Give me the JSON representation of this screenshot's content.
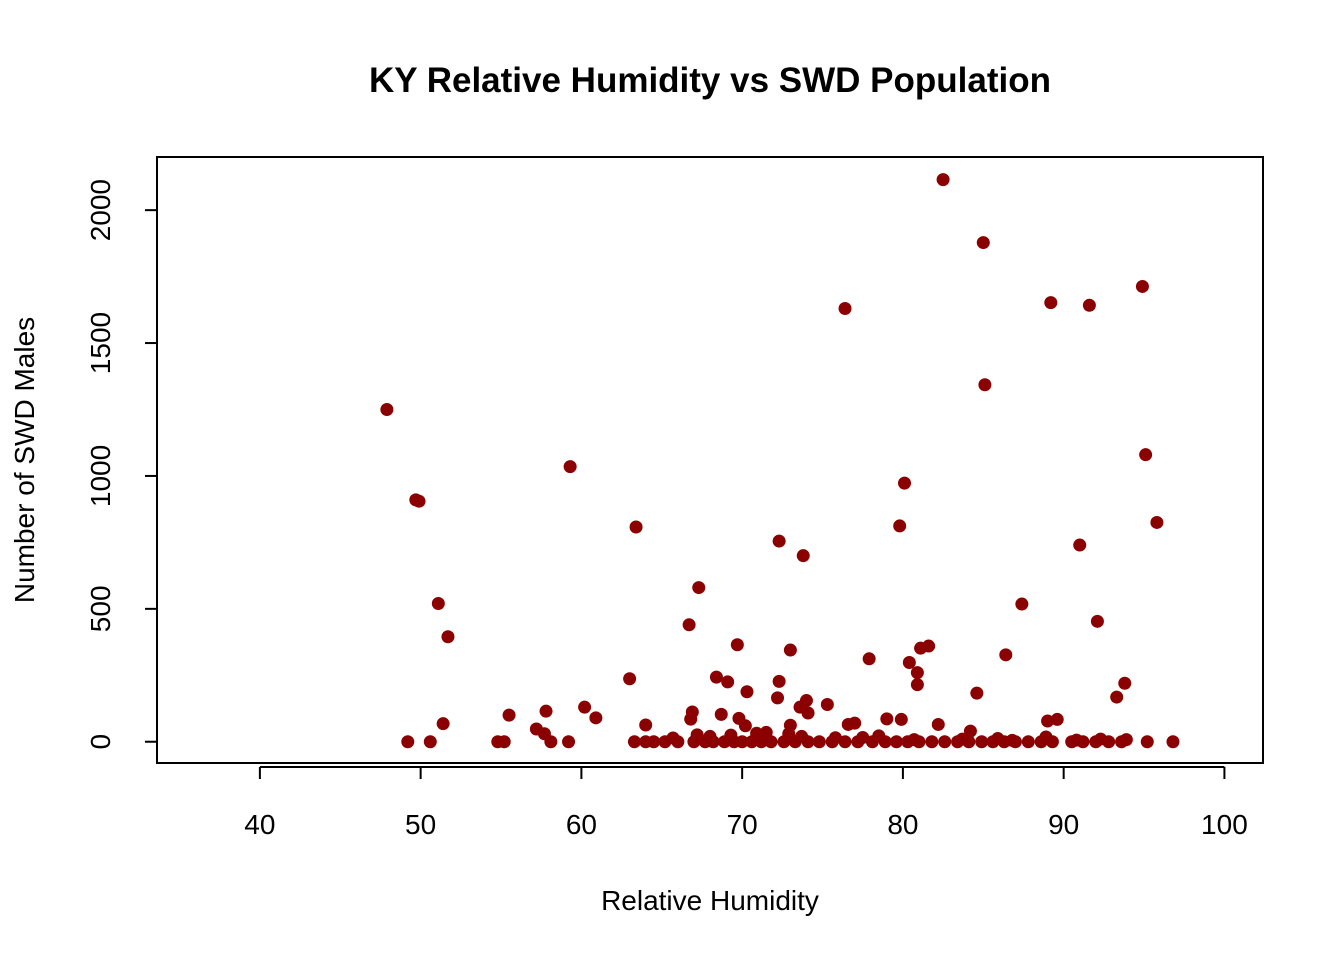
{
  "chart_data": {
    "type": "scatter",
    "title": "KY Relative Humidity vs SWD Population",
    "xlabel": "Relative Humidity",
    "ylabel": "Number of SWD Males",
    "xlim": [
      33.6,
      102.4
    ],
    "ylim": [
      -80,
      2200
    ],
    "x_ticks": [
      40,
      50,
      60,
      70,
      80,
      90,
      100
    ],
    "y_ticks": [
      0,
      500,
      1000,
      1500,
      2000
    ],
    "x_tick_labels": [
      "40",
      "50",
      "60",
      "70",
      "80",
      "90",
      "100"
    ],
    "y_tick_labels": [
      "0",
      "500",
      "1000",
      "1500",
      "2000"
    ],
    "grid": false,
    "legend": "none",
    "point_color": "#8B0000",
    "series": [
      {
        "x": [
          47.9,
          49.7,
          49.9,
          51.1,
          51.7,
          59.3,
          63.4,
          76.4,
          82.5,
          85.0,
          85.1,
          89.2,
          91.6,
          94.9,
          95.1,
          95.8,
          91.0,
          92.1,
          87.4,
          86.4,
          80.1,
          79.8,
          72.3,
          73.8,
          67.3,
          66.7,
          69.7,
          73.0,
          77.9,
          81.6,
          81.1,
          80.4,
          80.9,
          80.9,
          84.6,
          93.3,
          93.8,
          63.0,
          68.4,
          69.1,
          72.3,
          72.2,
          70.3,
          74.0,
          73.6,
          74.1,
          75.3,
          68.7,
          66.9,
          66.8,
          60.2,
          60.9,
          57.8,
          55.5,
          51.4,
          57.2,
          57.7,
          69.8,
          70.2,
          73.0,
          76.6,
          77.0,
          79.0,
          79.9,
          82.2,
          84.2,
          89.0,
          89.6,
          64.0,
          49.2,
          50.6,
          54.8,
          55.2,
          58.1,
          59.2,
          63.3,
          64.0,
          64.5,
          65.2,
          66.0,
          67.0,
          67.7,
          68.2,
          68.9,
          69.5,
          70.0,
          70.6,
          71.2,
          71.8,
          72.6,
          73.3,
          74.1,
          74.8,
          75.6,
          76.4,
          77.2,
          78.1,
          78.9,
          79.6,
          80.3,
          81.0,
          81.8,
          82.6,
          83.4,
          84.1,
          84.9,
          85.6,
          86.3,
          87.0,
          87.8,
          88.6,
          89.3,
          90.5,
          91.2,
          92.0,
          92.8,
          93.6,
          95.2,
          96.8,
          71.5,
          69.3,
          68.0,
          72.9,
          75.8,
          78.5,
          85.9,
          88.9,
          92.3,
          65.7,
          67.2,
          70.9,
          73.7,
          77.5,
          80.7,
          83.7,
          86.8,
          90.8,
          93.9
        ],
        "y": [
          1250,
          910,
          905,
          520,
          395,
          1035,
          808,
          1630,
          2115,
          1878,
          1343,
          1652,
          1642,
          1713,
          1080,
          825,
          740,
          453,
          518,
          327,
          973,
          812,
          755,
          700,
          580,
          440,
          365,
          345,
          312,
          360,
          352,
          298,
          260,
          215,
          183,
          168,
          220,
          237,
          243,
          225,
          227,
          165,
          188,
          155,
          130,
          108,
          140,
          103,
          112,
          85,
          130,
          90,
          115,
          100,
          68,
          48,
          30,
          88,
          60,
          62,
          65,
          70,
          86,
          84,
          65,
          40,
          78,
          84,
          63,
          0,
          0,
          0,
          0,
          0,
          0,
          0,
          0,
          0,
          0,
          0,
          0,
          0,
          0,
          0,
          0,
          0,
          0,
          0,
          0,
          0,
          0,
          0,
          0,
          0,
          0,
          0,
          0,
          0,
          0,
          0,
          0,
          0,
          0,
          0,
          0,
          0,
          0,
          0,
          0,
          0,
          0,
          0,
          0,
          0,
          0,
          0,
          0,
          0,
          0,
          35,
          25,
          20,
          30,
          15,
          22,
          12,
          18,
          10,
          14,
          26,
          32,
          20,
          16,
          8,
          10,
          5,
          6,
          8
        ]
      }
    ]
  }
}
